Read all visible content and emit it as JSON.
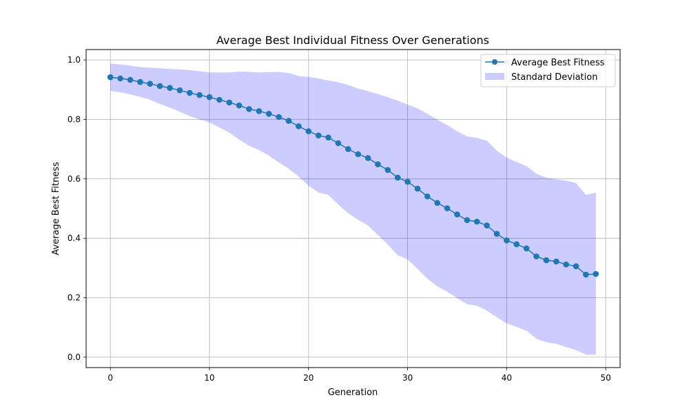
{
  "chart_data": {
    "type": "line",
    "title": "Average Best Individual Fitness Over Generations",
    "xlabel": "Generation",
    "ylabel": "Average Best Fitness",
    "xlim": [
      -2.45,
      51.45
    ],
    "ylim": [
      -0.035,
      1.035
    ],
    "xticks": [
      0,
      10,
      20,
      30,
      40,
      50
    ],
    "yticks": [
      0.0,
      0.2,
      0.4,
      0.6,
      0.8,
      1.0
    ],
    "xtick_labels": [
      "0",
      "10",
      "20",
      "30",
      "40",
      "50"
    ],
    "ytick_labels": [
      "0.0",
      "0.2",
      "0.4",
      "0.6",
      "0.8",
      "1.0"
    ],
    "grid": true,
    "legend_position": "top-right",
    "x": [
      0,
      1,
      2,
      3,
      4,
      5,
      6,
      7,
      8,
      9,
      10,
      11,
      12,
      13,
      14,
      15,
      16,
      17,
      18,
      19,
      20,
      21,
      22,
      23,
      24,
      25,
      26,
      27,
      28,
      29,
      30,
      31,
      32,
      33,
      34,
      35,
      36,
      37,
      38,
      39,
      40,
      41,
      42,
      43,
      44,
      45,
      46,
      47,
      48,
      49
    ],
    "series": [
      {
        "name": "Average Best Fitness",
        "type": "line",
        "marker": "circle",
        "color": "#1f77b4",
        "values": [
          0.942,
          0.938,
          0.933,
          0.926,
          0.92,
          0.912,
          0.906,
          0.898,
          0.889,
          0.882,
          0.875,
          0.866,
          0.857,
          0.847,
          0.835,
          0.828,
          0.819,
          0.808,
          0.795,
          0.777,
          0.76,
          0.746,
          0.739,
          0.72,
          0.7,
          0.683,
          0.67,
          0.649,
          0.63,
          0.604,
          0.59,
          0.567,
          0.541,
          0.519,
          0.501,
          0.48,
          0.461,
          0.456,
          0.443,
          0.415,
          0.393,
          0.38,
          0.366,
          0.339,
          0.326,
          0.322,
          0.312,
          0.306,
          0.278,
          0.28
        ]
      },
      {
        "name": "Standard Deviation",
        "type": "band",
        "color": "#0000ff",
        "opacity": 0.2,
        "upper": [
          0.988,
          0.985,
          0.981,
          0.976,
          0.974,
          0.972,
          0.97,
          0.968,
          0.966,
          0.962,
          0.958,
          0.958,
          0.958,
          0.961,
          0.96,
          0.958,
          0.959,
          0.96,
          0.956,
          0.946,
          0.943,
          0.938,
          0.931,
          0.925,
          0.916,
          0.904,
          0.895,
          0.885,
          0.875,
          0.863,
          0.85,
          0.837,
          0.819,
          0.799,
          0.781,
          0.76,
          0.743,
          0.738,
          0.728,
          0.695,
          0.671,
          0.657,
          0.643,
          0.617,
          0.604,
          0.598,
          0.594,
          0.586,
          0.546,
          0.554
        ],
        "lower": [
          0.896,
          0.891,
          0.884,
          0.876,
          0.866,
          0.852,
          0.84,
          0.826,
          0.811,
          0.8,
          0.79,
          0.773,
          0.755,
          0.732,
          0.711,
          0.697,
          0.678,
          0.655,
          0.634,
          0.608,
          0.577,
          0.554,
          0.546,
          0.514,
          0.484,
          0.462,
          0.443,
          0.411,
          0.379,
          0.343,
          0.329,
          0.297,
          0.264,
          0.238,
          0.22,
          0.199,
          0.178,
          0.173,
          0.157,
          0.134,
          0.114,
          0.102,
          0.089,
          0.062,
          0.05,
          0.045,
          0.034,
          0.024,
          0.008,
          0.008
        ]
      }
    ]
  }
}
